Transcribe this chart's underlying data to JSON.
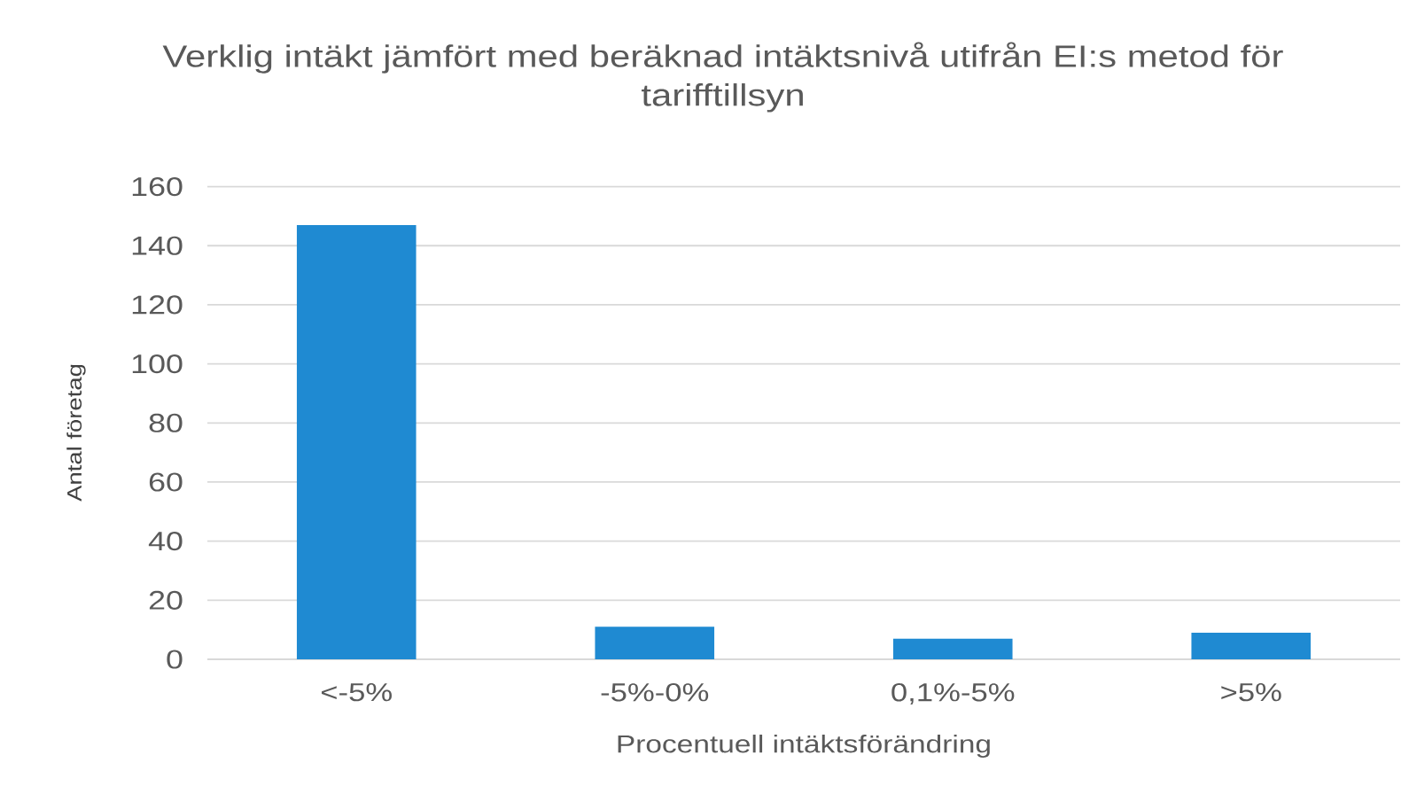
{
  "chart_data": {
    "type": "bar",
    "title": "Verklig intäkt jämfört med beräknad intäktsnivå utifrån EI:s metod för tarifftillsyn",
    "xlabel": "Procentuell intäktsförändring",
    "ylabel": "Antal företag",
    "categories": [
      "<-5%",
      "-5%-0%",
      "0,1%-5%",
      ">5%"
    ],
    "values": [
      147,
      11,
      7,
      9
    ],
    "color": "#1f8ad2",
    "ylim": [
      0,
      160
    ],
    "yticks": [
      0,
      20,
      40,
      60,
      80,
      100,
      120,
      140,
      160
    ],
    "grid": "y"
  }
}
